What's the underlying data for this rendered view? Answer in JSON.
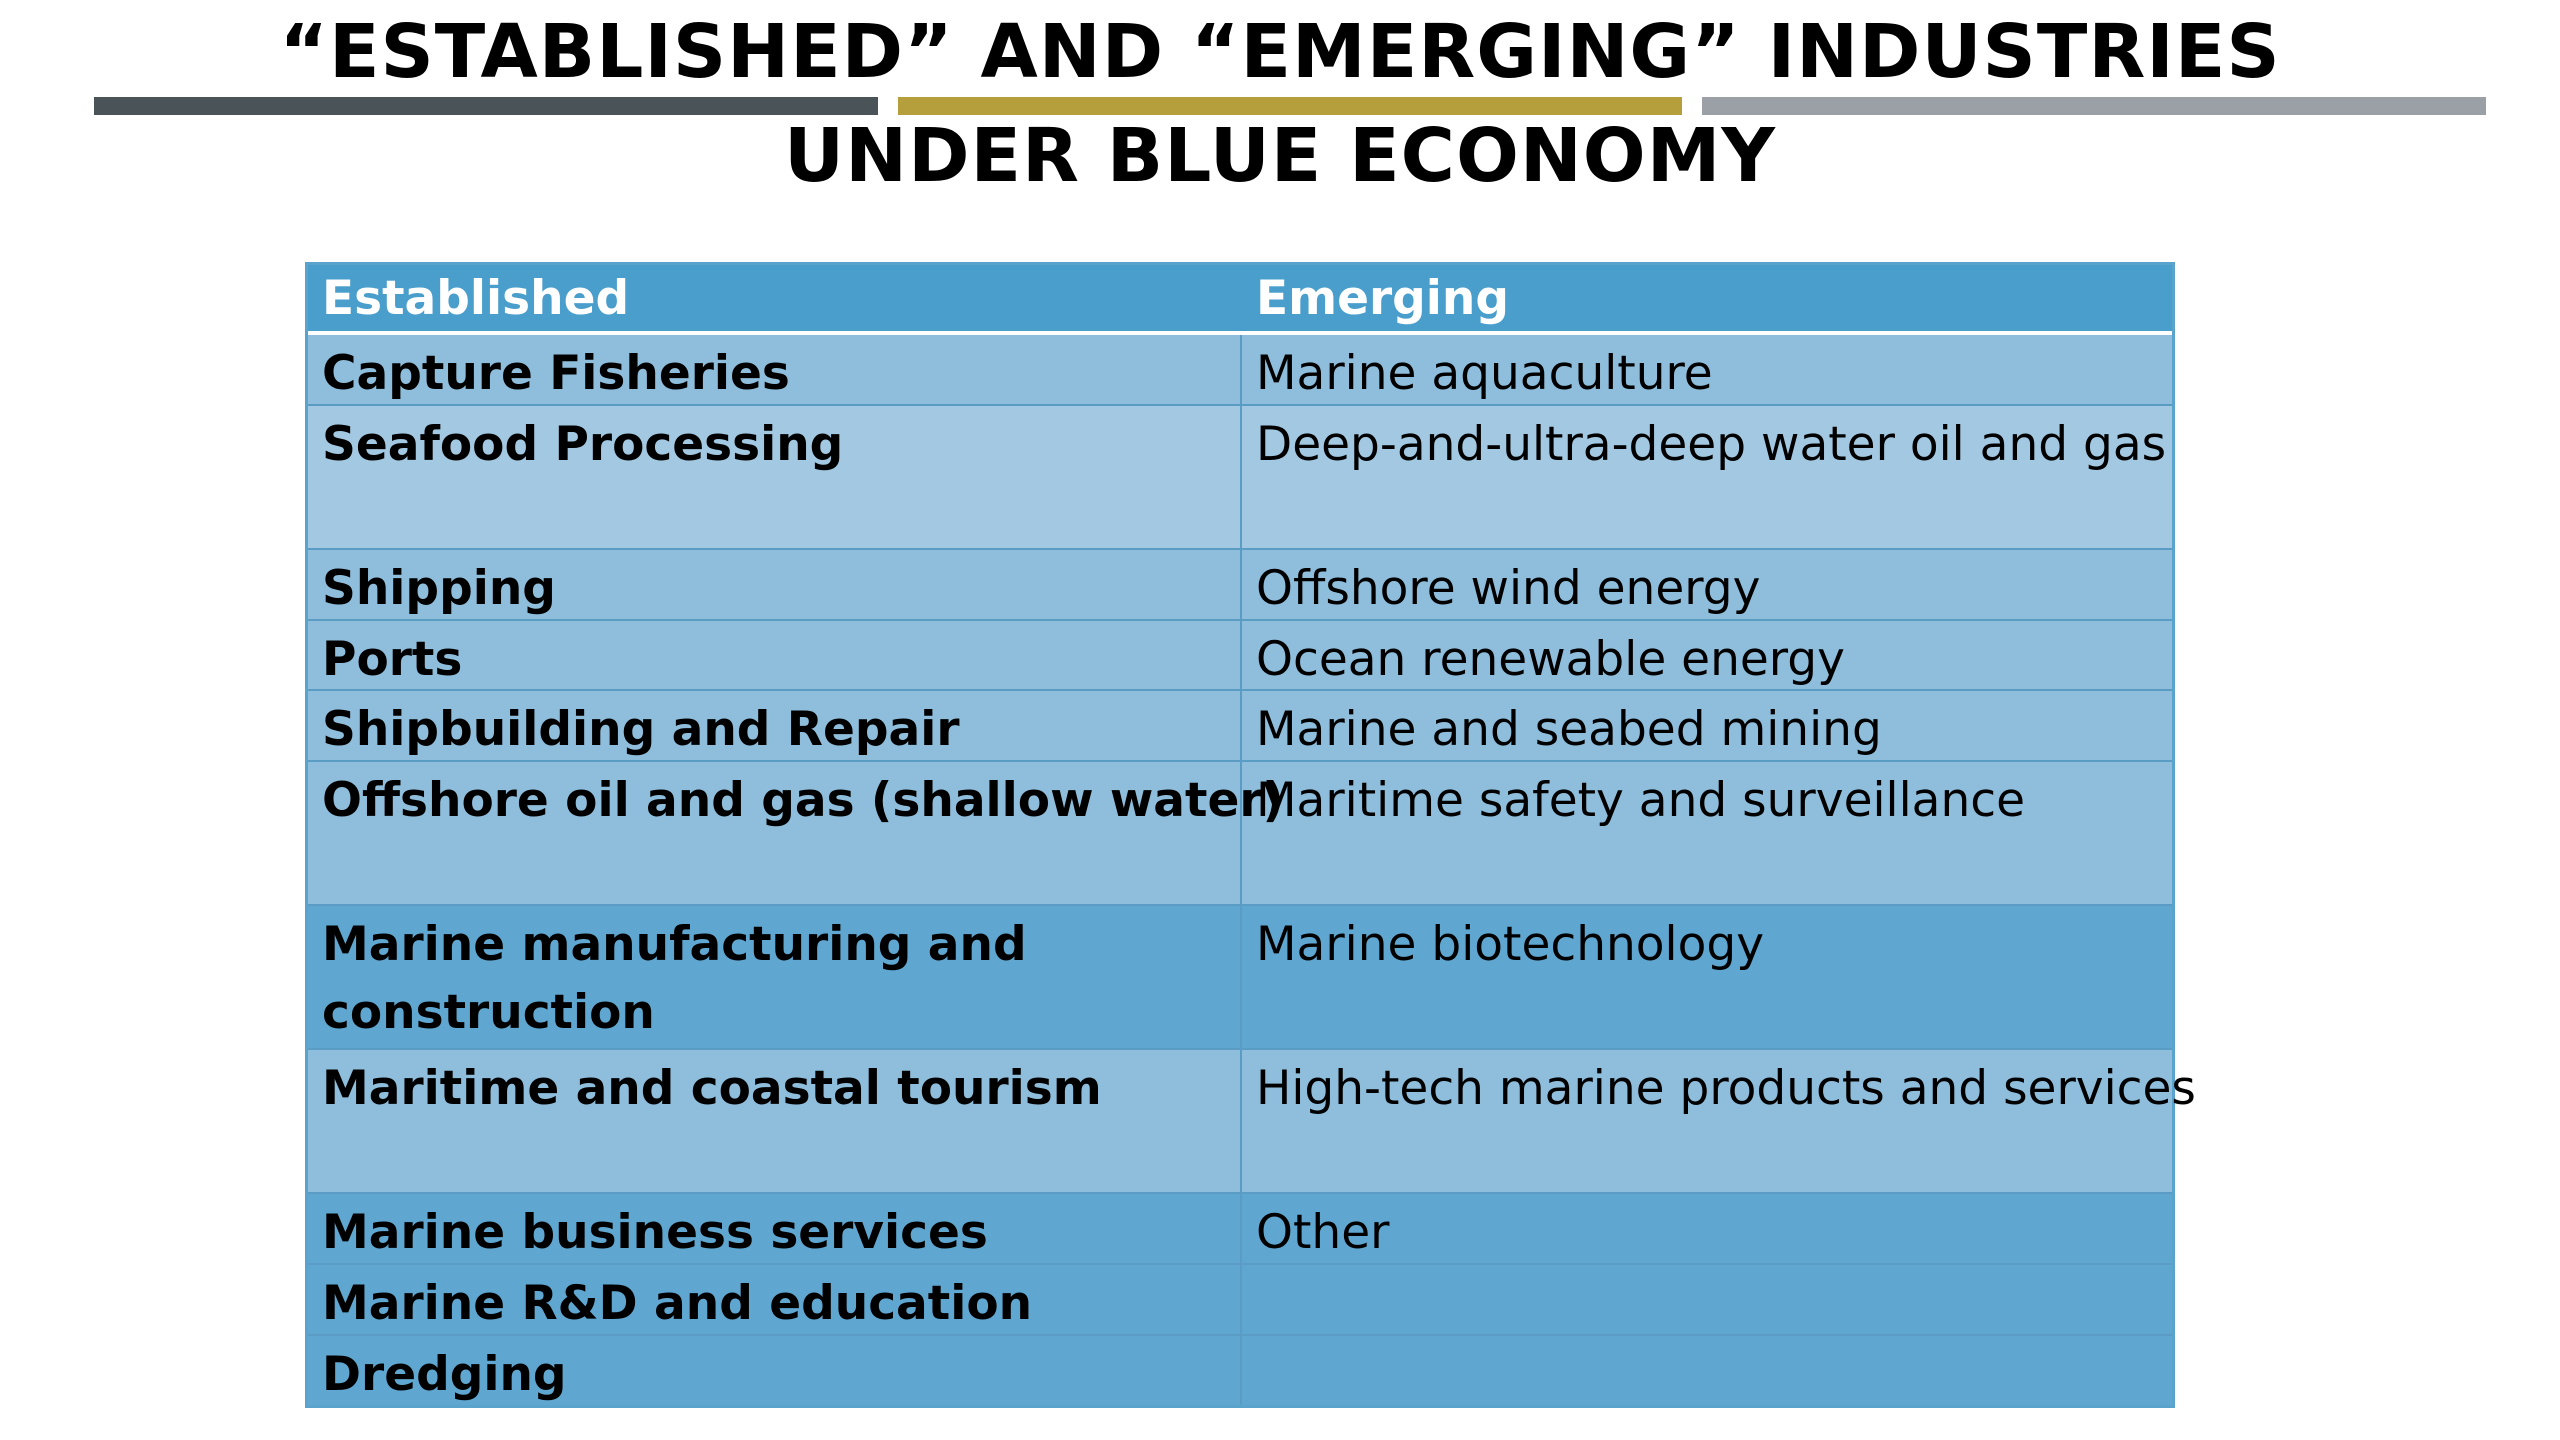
{
  "slide": {
    "title_line_1": "“ESTABLISHED” AND “EMERGING” INDUSTRIES",
    "title_line_2": "UNDER BLUE ECONOMY",
    "bar_colors": [
      "#4a5358",
      "#b49f3c",
      "#9aa0a5"
    ]
  },
  "table": {
    "headers": {
      "established": "Established",
      "emerging": "Emerging"
    },
    "colors": {
      "header_background": "#4a9ecb",
      "row_light": "#a3c9e2",
      "row_mid": "#8fbedc",
      "row_dark": "#5fa7d1"
    },
    "rows": [
      {
        "established": "Capture Fisheries",
        "emerging": "Marine aquaculture"
      },
      {
        "established": "Seafood Processing",
        "emerging": "Deep-and-ultra-deep water oil and gas"
      },
      {
        "established": "Shipping",
        "emerging": "Offshore wind energy"
      },
      {
        "established": "Ports",
        "emerging": "Ocean renewable energy"
      },
      {
        "established": "Shipbuilding and Repair",
        "emerging": "Marine and seabed mining"
      },
      {
        "established": "Offshore oil and gas (shallow water)",
        "emerging": "Maritime safety and surveillance"
      },
      {
        "established": "Marine manufacturing and construction",
        "emerging": "Marine biotechnology"
      },
      {
        "established": "Maritime and coastal tourism",
        "emerging": "High-tech marine products and services"
      },
      {
        "established": "Marine business services",
        "emerging": "Other"
      },
      {
        "established": "Marine R&D and education",
        "emerging": ""
      },
      {
        "established": "Dredging",
        "emerging": ""
      }
    ]
  }
}
